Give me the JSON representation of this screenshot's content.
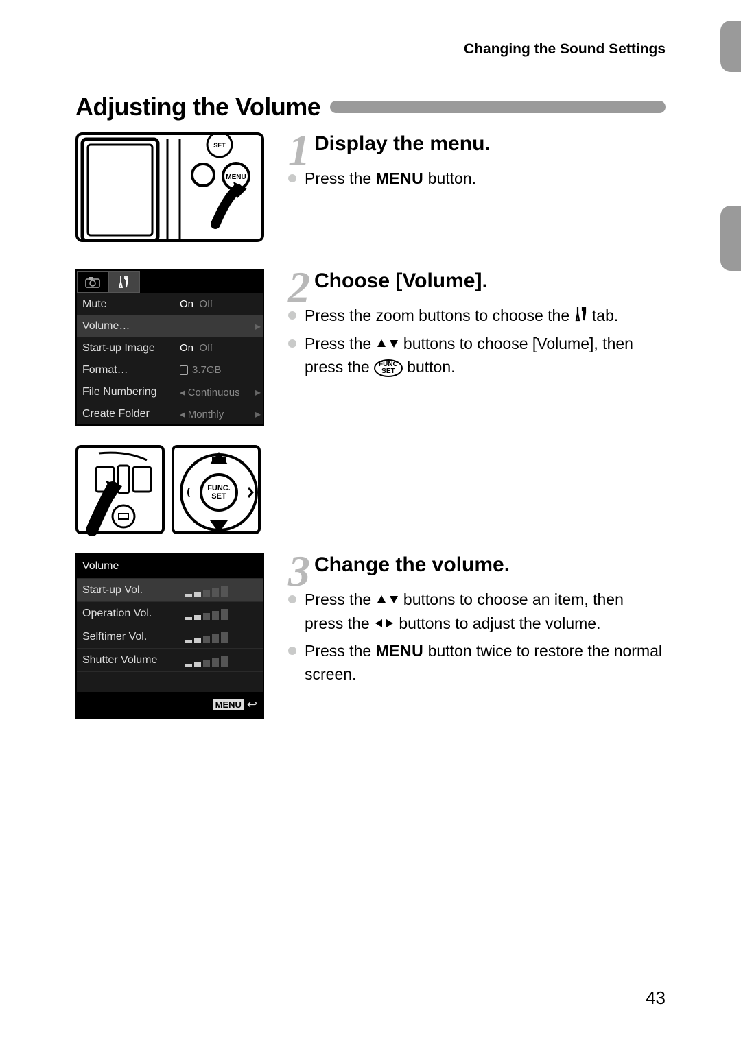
{
  "header": {
    "breadcrumb": "Changing the Sound Settings"
  },
  "section": {
    "title": "Adjusting the Volume"
  },
  "steps": [
    {
      "num": "1",
      "title": "Display the menu.",
      "bullets": [
        {
          "pre": "Press the ",
          "icon": "menu-word",
          "iconText": "MENU",
          "post": " button."
        }
      ]
    },
    {
      "num": "2",
      "title": "Choose [Volume].",
      "bullets": [
        {
          "pre": "Press the zoom buttons to choose the ",
          "icon": "tools-icon",
          "post": " tab."
        },
        {
          "pre": "Press the ",
          "icon": "updown-icon",
          "post": " buttons to choose [Volume], then press the ",
          "icon2": "func-set-icon",
          "icon2Text": "FUNC SET",
          "post2": " button."
        }
      ]
    },
    {
      "num": "3",
      "title": "Change the volume.",
      "bullets": [
        {
          "pre": "Press the ",
          "icon": "updown-icon",
          "post": " buttons to choose an item, then press the ",
          "icon2": "leftright-icon",
          "post2": " buttons to adjust the volume."
        },
        {
          "pre": "Press the ",
          "icon": "menu-word",
          "iconText": "MENU",
          "post": " button twice to restore the normal screen."
        }
      ]
    }
  ],
  "menuScreen": {
    "tabs": [
      "camera-icon",
      "tools-icon"
    ],
    "rows": [
      {
        "label": "Mute",
        "value_on": "On",
        "value_off": "Off",
        "selected": false
      },
      {
        "label": "Volume…",
        "value": "",
        "selected": true,
        "hasRightArrow": true
      },
      {
        "label": "Start-up Image",
        "value_on": "On",
        "value_off": "Off",
        "selected": false
      },
      {
        "label": "Format…",
        "value": "3.7GB",
        "valueIcon": "card",
        "selected": false
      },
      {
        "label": "File Numbering",
        "value": "Continuous",
        "leftArrow": true,
        "rightArrow": true,
        "selected": false
      },
      {
        "label": "Create Folder",
        "value": "Monthly",
        "leftArrow": true,
        "rightArrow": true,
        "selected": false
      }
    ]
  },
  "volumeScreen": {
    "title": "Volume",
    "rows": [
      {
        "label": "Start-up Vol.",
        "level": 2,
        "max": 5,
        "selected": true
      },
      {
        "label": "Operation Vol.",
        "level": 2,
        "max": 5,
        "selected": false
      },
      {
        "label": "Selftimer Vol.",
        "level": 2,
        "max": 5,
        "selected": false
      },
      {
        "label": "Shutter Volume",
        "level": 2,
        "max": 5,
        "selected": false
      }
    ],
    "footerLabel": "MENU",
    "footerIcon": "return-icon"
  },
  "colors": {
    "stepNumber": "#b8b8b8",
    "bullet": "#c9cac9",
    "titleBar": "#9a9a9a",
    "screenBg": "#000000",
    "screenText": "#dddddd",
    "screenMuted": "#888888",
    "rowSelected": "#3a3a3a"
  },
  "typography": {
    "sectionTitle_pt": 27,
    "stepTitle_pt": 22,
    "body_pt": 17,
    "stepNum_pt": 48
  },
  "pageNumber": "43"
}
